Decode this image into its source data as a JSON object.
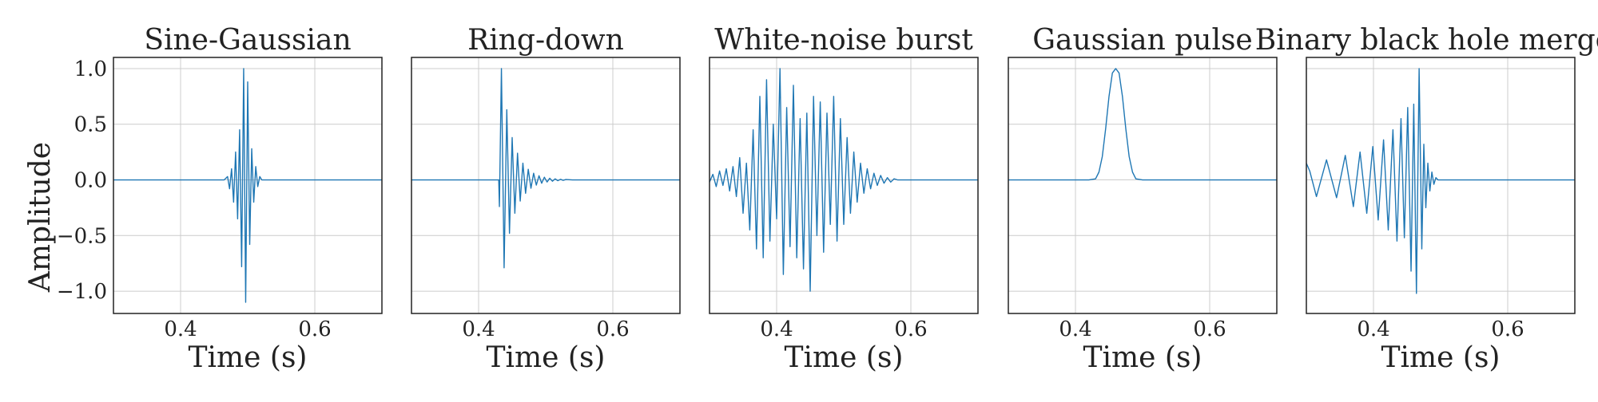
{
  "figure": {
    "ylabel": "Amplitude",
    "colors": {
      "line": "#1f77b4",
      "grid": "#cccccc",
      "frame": "#222222"
    }
  },
  "chart_data": [
    {
      "type": "line",
      "title": "Sine-Gaussian",
      "xlabel": "Time (s)",
      "ylabel": "Amplitude",
      "xlim": [
        0.3,
        0.7
      ],
      "ylim": [
        -1.2,
        1.1
      ],
      "xticks": [
        0.4,
        0.6
      ],
      "xtick_labels": [
        "0.4",
        "0.6"
      ],
      "yticks": [
        -1.0,
        -0.5,
        0.0,
        0.5,
        1.0
      ],
      "ytick_labels": [
        "−1.0",
        "−0.5",
        "0.0",
        "0.5",
        "1.0"
      ],
      "grid": true,
      "series": [
        {
          "x": [
            0.3,
            0.46,
            0.465,
            0.47,
            0.473,
            0.476,
            0.479,
            0.482,
            0.485,
            0.488,
            0.491,
            0.494,
            0.497,
            0.5,
            0.503,
            0.506,
            0.509,
            0.512,
            0.515,
            0.518,
            0.521,
            0.524,
            0.53,
            0.7
          ],
          "y": [
            0.0,
            0.0,
            0.0,
            0.03,
            -0.08,
            0.1,
            -0.2,
            0.25,
            -0.35,
            0.45,
            -0.78,
            1.0,
            -1.1,
            0.88,
            -0.58,
            0.28,
            -0.2,
            0.12,
            -0.06,
            0.03,
            0.0,
            0.0,
            0.0,
            0.0
          ]
        }
      ]
    },
    {
      "type": "line",
      "title": "Ring-down",
      "xlabel": "Time (s)",
      "xlim": [
        0.3,
        0.7
      ],
      "ylim": [
        -1.2,
        1.1
      ],
      "xticks": [
        0.4,
        0.6
      ],
      "xtick_labels": [
        "0.4",
        "0.6"
      ],
      "yticks": [
        -1.0,
        -0.5,
        0.0,
        0.5,
        1.0
      ],
      "grid": true,
      "series": [
        {
          "x": [
            0.3,
            0.43,
            0.431,
            0.434,
            0.438,
            0.442,
            0.446,
            0.45,
            0.454,
            0.458,
            0.462,
            0.466,
            0.47,
            0.474,
            0.478,
            0.482,
            0.486,
            0.49,
            0.494,
            0.498,
            0.502,
            0.506,
            0.51,
            0.514,
            0.518,
            0.522,
            0.526,
            0.53,
            0.54,
            0.7
          ],
          "y": [
            0.0,
            0.0,
            -0.24,
            1.0,
            -0.79,
            0.63,
            -0.48,
            0.38,
            -0.3,
            0.24,
            -0.19,
            0.15,
            -0.12,
            0.095,
            -0.075,
            0.06,
            -0.047,
            0.037,
            -0.03,
            0.024,
            -0.019,
            0.015,
            -0.012,
            0.009,
            -0.007,
            0.005,
            -0.004,
            0.003,
            0.0,
            0.0
          ]
        }
      ]
    },
    {
      "type": "line",
      "title": "White-noise burst",
      "xlabel": "Time (s)",
      "xlim": [
        0.3,
        0.7
      ],
      "ylim": [
        -1.2,
        1.1
      ],
      "xticks": [
        0.4,
        0.6
      ],
      "xtick_labels": [
        "0.4",
        "0.6"
      ],
      "yticks": [
        -1.0,
        -0.5,
        0.0,
        0.5,
        1.0
      ],
      "grid": true,
      "series": [
        {
          "x": [
            0.3,
            0.305,
            0.31,
            0.315,
            0.32,
            0.325,
            0.33,
            0.335,
            0.34,
            0.345,
            0.35,
            0.355,
            0.36,
            0.365,
            0.37,
            0.375,
            0.38,
            0.385,
            0.39,
            0.395,
            0.4,
            0.405,
            0.41,
            0.415,
            0.42,
            0.425,
            0.43,
            0.435,
            0.44,
            0.445,
            0.45,
            0.455,
            0.46,
            0.465,
            0.47,
            0.475,
            0.48,
            0.485,
            0.49,
            0.495,
            0.5,
            0.505,
            0.51,
            0.515,
            0.52,
            0.525,
            0.53,
            0.535,
            0.54,
            0.545,
            0.55,
            0.555,
            0.56,
            0.565,
            0.57,
            0.575,
            0.58,
            0.59,
            0.6,
            0.7
          ],
          "y": [
            -0.02,
            0.05,
            -0.06,
            0.08,
            -0.05,
            0.1,
            -0.1,
            0.12,
            -0.15,
            0.2,
            -0.3,
            0.15,
            -0.45,
            0.45,
            -0.62,
            0.75,
            -0.7,
            0.9,
            -0.55,
            0.5,
            -0.35,
            1.0,
            -0.85,
            0.65,
            -0.6,
            0.85,
            -0.7,
            0.55,
            -0.8,
            0.6,
            -1.0,
            0.75,
            -0.5,
            0.7,
            -0.65,
            0.6,
            -0.4,
            0.75,
            -0.55,
            0.55,
            -0.4,
            0.38,
            -0.3,
            0.25,
            -0.2,
            0.15,
            -0.12,
            0.1,
            -0.08,
            0.06,
            -0.05,
            0.04,
            -0.03,
            0.02,
            -0.02,
            0.01,
            0.0,
            0.0,
            0.0,
            0.0
          ]
        }
      ]
    },
    {
      "type": "line",
      "title": "Gaussian pulse",
      "xlabel": "Time (s)",
      "xlim": [
        0.3,
        0.7
      ],
      "ylim": [
        -1.2,
        1.1
      ],
      "xticks": [
        0.4,
        0.6
      ],
      "xtick_labels": [
        "0.4",
        "0.6"
      ],
      "yticks": [
        -1.0,
        -0.5,
        0.0,
        0.5,
        1.0
      ],
      "grid": true,
      "series": [
        {
          "x": [
            0.3,
            0.42,
            0.43,
            0.435,
            0.44,
            0.445,
            0.45,
            0.455,
            0.46,
            0.465,
            0.47,
            0.475,
            0.48,
            0.485,
            0.49,
            0.5,
            0.7
          ],
          "y": [
            0.0,
            0.0,
            0.01,
            0.07,
            0.21,
            0.46,
            0.75,
            0.96,
            1.0,
            0.96,
            0.75,
            0.46,
            0.21,
            0.07,
            0.01,
            0.0,
            0.0
          ]
        }
      ]
    },
    {
      "type": "line",
      "title": "Binary black hole merger",
      "xlabel": "Time (s)",
      "xlim": [
        0.3,
        0.7
      ],
      "ylim": [
        -1.2,
        1.1
      ],
      "xticks": [
        0.4,
        0.6
      ],
      "xtick_labels": [
        "0.4",
        "0.6"
      ],
      "yticks": [
        -1.0,
        -0.5,
        0.0,
        0.5,
        1.0
      ],
      "grid": true,
      "series": [
        {
          "x": [
            0.3,
            0.305,
            0.315,
            0.33,
            0.345,
            0.358,
            0.37,
            0.38,
            0.39,
            0.399,
            0.407,
            0.415,
            0.422,
            0.429,
            0.435,
            0.441,
            0.446,
            0.451,
            0.456,
            0.46,
            0.464,
            0.468,
            0.472,
            0.475,
            0.478,
            0.481,
            0.484,
            0.487,
            0.49,
            0.493,
            0.496,
            0.5,
            0.505,
            0.51,
            0.7
          ],
          "y": [
            0.15,
            0.08,
            -0.15,
            0.18,
            -0.16,
            0.22,
            -0.24,
            0.25,
            -0.3,
            0.3,
            -0.36,
            0.36,
            -0.45,
            0.45,
            -0.55,
            0.55,
            -0.52,
            0.65,
            -0.82,
            0.68,
            -1.02,
            1.0,
            -0.62,
            0.32,
            -0.25,
            0.15,
            -0.1,
            0.07,
            -0.04,
            0.02,
            0.0,
            0.0,
            0.0,
            0.0,
            0.0
          ]
        }
      ]
    }
  ]
}
